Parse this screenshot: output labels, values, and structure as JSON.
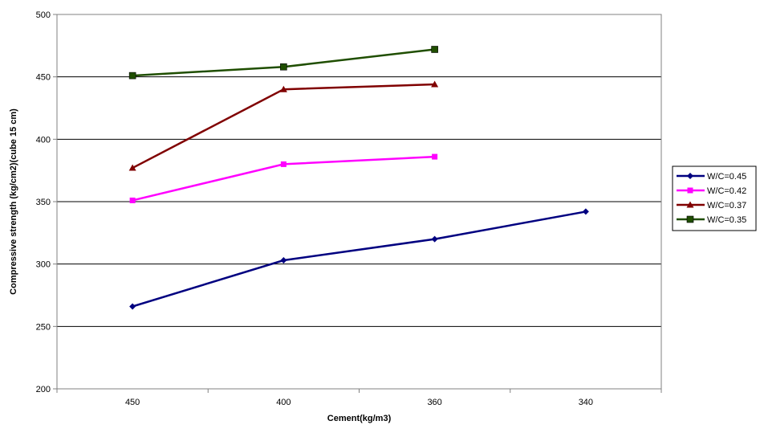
{
  "chart_data": {
    "type": "line",
    "categories": [
      "450",
      "400",
      "360",
      "340"
    ],
    "xlabel": "Cement(kg/m3)",
    "ylabel": "Compressive strength  (kg/cm2)(cube 15 cm)",
    "ylim": [
      200,
      500
    ],
    "yticks": [
      200,
      250,
      300,
      350,
      400,
      450,
      500
    ],
    "grid": true,
    "legend_position": "right",
    "series": [
      {
        "name": "W/C=0.45",
        "values": [
          266,
          303,
          320,
          342
        ],
        "color": "#000080",
        "marker": "diamond"
      },
      {
        "name": "W/C=0.42",
        "values": [
          351,
          380,
          386,
          null
        ],
        "color": "#FF00FF",
        "marker": "square"
      },
      {
        "name": "W/C=0.37",
        "values": [
          377,
          440,
          444,
          null
        ],
        "color": "#800000",
        "marker": "triangle"
      },
      {
        "name": "W/C=0.35",
        "values": [
          451,
          458,
          472,
          null
        ],
        "color": "#1F4E00",
        "marker": "square-large"
      }
    ]
  }
}
